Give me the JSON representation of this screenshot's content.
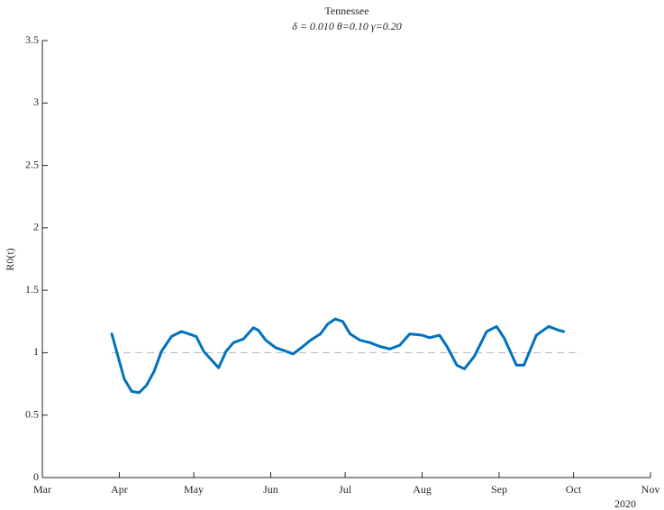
{
  "chart_data": {
    "type": "line",
    "title": "Tennessee",
    "subtitle": "δ = 0.010  θ=0.10  γ=0.20",
    "y_label": "R0(t)",
    "x_year_label": "2020",
    "xlim": [
      "2020-03-01",
      "2020-11-01"
    ],
    "xticks": [
      {
        "value": "2020-03-01",
        "label": "Mar"
      },
      {
        "value": "2020-04-01",
        "label": "Apr"
      },
      {
        "value": "2020-05-01",
        "label": "May"
      },
      {
        "value": "2020-06-01",
        "label": "Jun"
      },
      {
        "value": "2020-07-01",
        "label": "Jul"
      },
      {
        "value": "2020-08-01",
        "label": "Aug"
      },
      {
        "value": "2020-09-01",
        "label": "Sep"
      },
      {
        "value": "2020-10-01",
        "label": "Oct"
      },
      {
        "value": "2020-11-01",
        "label": "Nov"
      }
    ],
    "ylim": [
      0,
      3.5
    ],
    "yticks": [
      0,
      0.5,
      1,
      1.5,
      2,
      2.5,
      3,
      3.5
    ],
    "reference_line": {
      "y": 1,
      "x": [
        "2020-03-29",
        "2020-10-04"
      ],
      "color": "#b3b3b3"
    },
    "x": [
      "2020-03-29",
      "2020-04-03",
      "2020-04-06",
      "2020-04-09",
      "2020-04-12",
      "2020-04-15",
      "2020-04-18",
      "2020-04-22",
      "2020-04-26",
      "2020-04-29",
      "2020-05-02",
      "2020-05-05",
      "2020-05-11",
      "2020-05-14",
      "2020-05-17",
      "2020-05-21",
      "2020-05-25",
      "2020-05-27",
      "2020-05-30",
      "2020-06-03",
      "2020-06-06",
      "2020-06-10",
      "2020-06-14",
      "2020-06-17",
      "2020-06-21",
      "2020-06-24",
      "2020-06-27",
      "2020-06-30",
      "2020-07-03",
      "2020-07-07",
      "2020-07-11",
      "2020-07-15",
      "2020-07-19",
      "2020-07-23",
      "2020-07-27",
      "2020-08-01",
      "2020-08-04",
      "2020-08-08",
      "2020-08-11",
      "2020-08-15",
      "2020-08-18",
      "2020-08-22",
      "2020-08-27",
      "2020-08-31",
      "2020-09-03",
      "2020-09-08",
      "2020-09-11",
      "2020-09-16",
      "2020-09-21",
      "2020-09-25",
      "2020-09-27"
    ],
    "series": [
      {
        "name": "R0(t)",
        "color": "#0072bd",
        "values": [
          1.15,
          0.79,
          0.69,
          0.68,
          0.74,
          0.85,
          1.01,
          1.13,
          1.17,
          1.15,
          1.13,
          1.01,
          0.88,
          1.01,
          1.08,
          1.11,
          1.2,
          1.18,
          1.1,
          1.04,
          1.02,
          0.99,
          1.05,
          1.1,
          1.15,
          1.23,
          1.27,
          1.25,
          1.15,
          1.1,
          1.08,
          1.05,
          1.03,
          1.06,
          1.15,
          1.14,
          1.12,
          1.14,
          1.05,
          0.9,
          0.87,
          0.97,
          1.17,
          1.21,
          1.12,
          0.9,
          0.9,
          1.14,
          1.21,
          1.18,
          1.17
        ]
      }
    ]
  }
}
